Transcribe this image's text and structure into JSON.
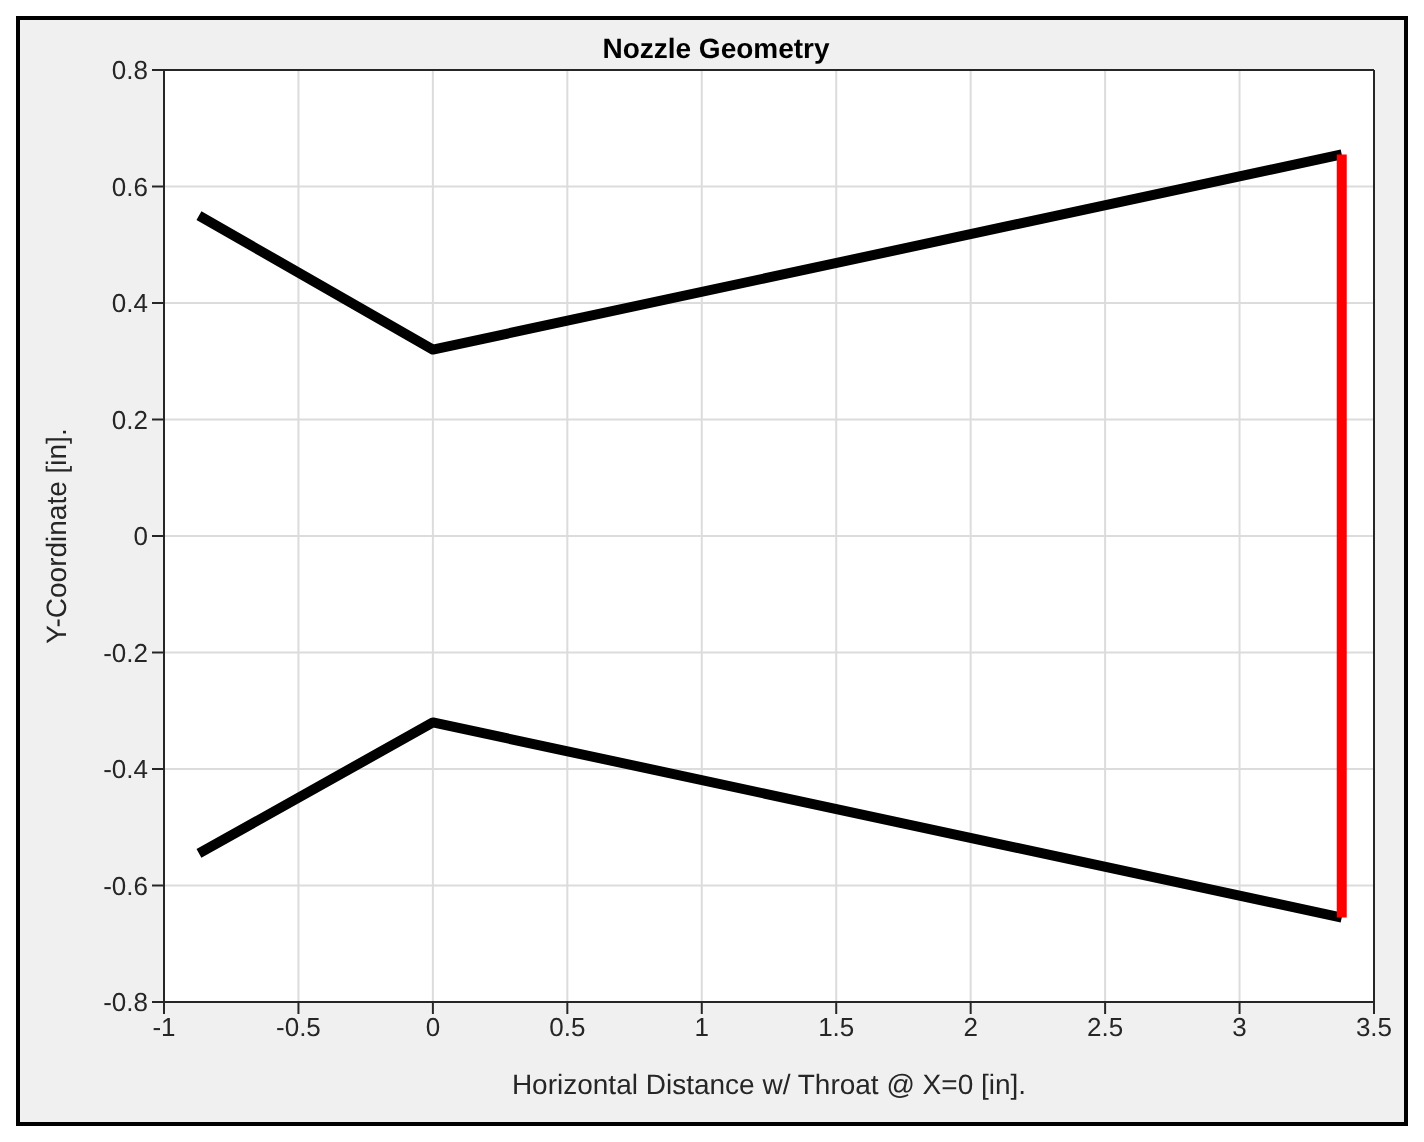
{
  "chart_data": {
    "type": "line",
    "title": "Nozzle Geometry",
    "xlabel": "Horizontal Distance w/ Throat @ X=0 [in].",
    "ylabel": "Y-Coordinate [in].",
    "series": [
      {
        "color": "#000000",
        "x": [
          -0.87,
          0,
          3.38
        ],
        "values": [
          0.55,
          0.32,
          0.655
        ]
      },
      {
        "color": "#000000",
        "x": [
          -0.87,
          0,
          3.38
        ],
        "values": [
          -0.545,
          -0.32,
          -0.655
        ]
      },
      {
        "color": "#ff0000",
        "x": [
          3.38,
          3.38
        ],
        "values": [
          0.655,
          -0.655
        ]
      }
    ],
    "xlim": [
      -1,
      3.5
    ],
    "xticks": [
      -1,
      -0.5,
      0,
      0.5,
      1,
      1.5,
      2,
      2.5,
      3,
      3.5
    ],
    "ylim": [
      -0.8,
      0.8
    ],
    "yticks": [
      -0.8,
      -0.6,
      -0.4,
      -0.2,
      0,
      0.2,
      0.4,
      0.6,
      0.8
    ],
    "grid": true,
    "marker": "none",
    "line_style": "solid"
  }
}
